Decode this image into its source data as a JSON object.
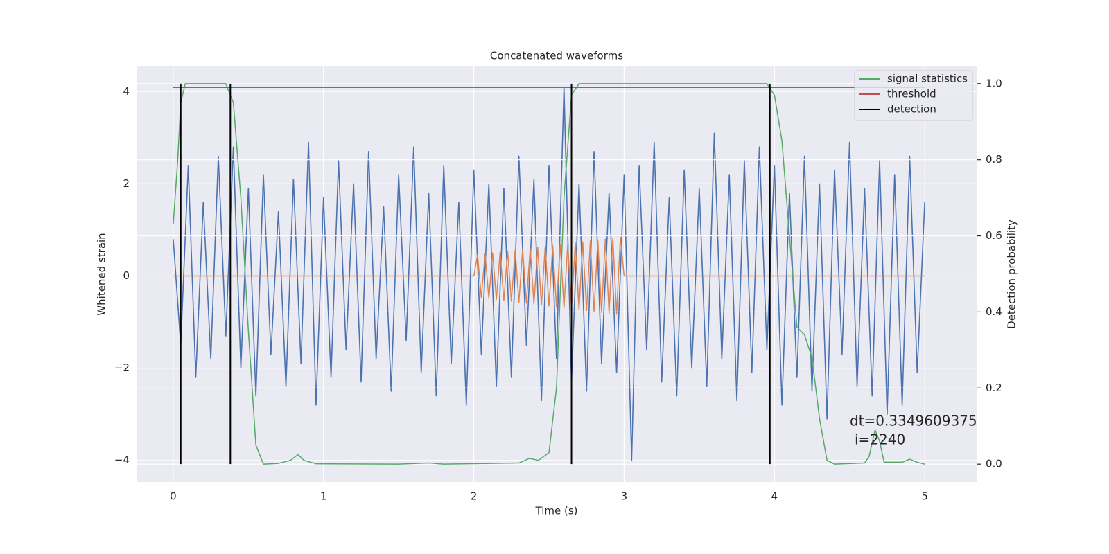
{
  "chart_data": {
    "type": "line",
    "title": "Concatenated waveforms",
    "x_label": "Time (s)",
    "y_label": "Whitened strain",
    "y2_label": "Detection probability",
    "annotation": [
      "dt=0.3349609375",
      "i=2240"
    ],
    "xlim": [
      -0.244,
      5.35
    ],
    "ylim": [
      -4.47,
      4.56
    ],
    "y2lim": [
      -0.047,
      1.047
    ],
    "xticks": [
      0,
      1,
      2,
      3,
      4,
      5
    ],
    "yticks": [
      {
        "value": -4,
        "label": "−4"
      },
      {
        "value": -2,
        "label": "−2"
      },
      0,
      2,
      4
    ],
    "y2ticks": [
      {
        "value": 0,
        "label": "0.0"
      },
      {
        "value": 0.2,
        "label": "0.2"
      },
      {
        "value": 0.4,
        "label": "0.4"
      },
      {
        "value": 0.6,
        "label": "0.6"
      },
      {
        "value": 0.8,
        "label": "0.8"
      },
      {
        "value": 1,
        "label": "1.0"
      }
    ],
    "grid": true,
    "legend": "upper right",
    "series": [
      {
        "color": "#4c72b0",
        "x": [
          0,
          0.05,
          0.1,
          0.15,
          0.2,
          0.25,
          0.3,
          0.35,
          0.4,
          0.45,
          0.5,
          0.55,
          0.6,
          0.65,
          0.7,
          0.75,
          0.8,
          0.85,
          0.9,
          0.95,
          1,
          1.05,
          1.1,
          1.15,
          1.2,
          1.25,
          1.3,
          1.35,
          1.4,
          1.45,
          1.5,
          1.55,
          1.6,
          1.65,
          1.7,
          1.75,
          1.8,
          1.85,
          1.9,
          1.95,
          2,
          2.05,
          2.1,
          2.15,
          2.2,
          2.25,
          2.3,
          2.35,
          2.4,
          2.45,
          2.5,
          2.55,
          2.6,
          2.65,
          2.7,
          2.75,
          2.8,
          2.85,
          2.9,
          2.95,
          3,
          3.05,
          3.1,
          3.15,
          3.2,
          3.25,
          3.3,
          3.35,
          3.4,
          3.45,
          3.5,
          3.55,
          3.6,
          3.65,
          3.7,
          3.75,
          3.8,
          3.85,
          3.9,
          3.95,
          4,
          4.05,
          4.1,
          4.15,
          4.2,
          4.25,
          4.3,
          4.35,
          4.4,
          4.45,
          4.5,
          4.55,
          4.6,
          4.65,
          4.7,
          4.75,
          4.8,
          4.85,
          4.9,
          4.95,
          5
        ],
        "values": [
          0.8,
          -1.5,
          2.4,
          -2.2,
          1.6,
          -1.8,
          2.6,
          -1.3,
          2.8,
          -2.0,
          1.9,
          -2.6,
          2.2,
          -1.7,
          1.4,
          -2.4,
          2.1,
          -1.9,
          2.9,
          -2.8,
          1.7,
          -2.2,
          2.5,
          -1.6,
          2.0,
          -2.3,
          2.7,
          -1.8,
          1.5,
          -2.5,
          2.2,
          -1.4,
          2.8,
          -2.1,
          1.8,
          -2.6,
          2.4,
          -1.9,
          1.6,
          -2.8,
          2.3,
          -1.7,
          2.0,
          -2.4,
          1.9,
          -2.2,
          2.6,
          -1.5,
          2.1,
          -2.7,
          2.4,
          -1.8,
          4.1,
          -2.3,
          2.0,
          -2.5,
          2.7,
          -1.9,
          1.8,
          -2.1,
          2.2,
          -4.0,
          2.4,
          -1.6,
          2.9,
          -2.3,
          1.7,
          -2.6,
          2.3,
          -2.0,
          1.9,
          -2.4,
          3.1,
          -1.8,
          2.2,
          -2.7,
          2.5,
          -2.1,
          2.8,
          -1.6,
          2.4,
          -2.8,
          1.8,
          -2.2,
          2.6,
          -2.5,
          2.0,
          -3.1,
          2.3,
          -1.7,
          2.9,
          -2.4,
          1.9,
          -2.6,
          2.5,
          -3.0,
          2.2,
          -2.8,
          2.6,
          -2.1,
          1.6
        ]
      },
      {
        "color": "#dd8452",
        "x": [
          0,
          2,
          2.025,
          2.05,
          2.075,
          2.1,
          2.125,
          2.15,
          2.175,
          2.2,
          2.225,
          2.25,
          2.275,
          2.3,
          2.325,
          2.35,
          2.375,
          2.4,
          2.425,
          2.45,
          2.475,
          2.5,
          2.525,
          2.55,
          2.575,
          2.6,
          2.625,
          2.65,
          2.675,
          2.7,
          2.725,
          2.75,
          2.775,
          2.8,
          2.825,
          2.85,
          2.875,
          2.9,
          2.925,
          2.95,
          2.975,
          3,
          5
        ],
        "values": [
          0,
          0,
          0.46,
          -0.47,
          0.48,
          -0.49,
          0.5,
          -0.51,
          0.52,
          -0.53,
          0.54,
          -0.55,
          0.56,
          -0.57,
          0.58,
          -0.59,
          0.6,
          -0.61,
          0.62,
          -0.63,
          0.64,
          -0.65,
          0.66,
          -0.67,
          0.68,
          -0.69,
          0.7,
          -0.71,
          0.72,
          -0.73,
          0.74,
          -0.75,
          0.76,
          -0.77,
          0.78,
          -0.79,
          0.8,
          -0.81,
          0.82,
          -0.83,
          0.84,
          0,
          0
        ]
      },
      {
        "name": "signal statistics",
        "color": "#55a868",
        "axis": "y2",
        "x": [
          0,
          0.03,
          0.05,
          0.08,
          0.35,
          0.4,
          0.45,
          0.5,
          0.55,
          0.6,
          0.7,
          0.78,
          0.83,
          0.87,
          0.95,
          1.5,
          1.7,
          1.8,
          2.3,
          2.37,
          2.43,
          2.5,
          2.55,
          2.6,
          2.65,
          2.7,
          3.95,
          4,
          4.05,
          4.1,
          4.15,
          4.2,
          4.25,
          4.3,
          4.35,
          4.4,
          4.6,
          4.63,
          4.67,
          4.7,
          4.73,
          4.85,
          4.9,
          4.95,
          5
        ],
        "values": [
          0.63,
          0.8,
          0.95,
          1.0,
          1.0,
          0.95,
          0.7,
          0.35,
          0.05,
          0.0,
          0.002,
          0.01,
          0.025,
          0.01,
          0.001,
          0.0,
          0.003,
          0.0,
          0.003,
          0.015,
          0.01,
          0.03,
          0.2,
          0.7,
          0.97,
          1.0,
          1.0,
          0.97,
          0.85,
          0.6,
          0.36,
          0.34,
          0.28,
          0.12,
          0.01,
          0.0,
          0.003,
          0.02,
          0.09,
          0.06,
          0.005,
          0.005,
          0.013,
          0.005,
          0.0
        ]
      },
      {
        "name": "threshold",
        "color": "#c44e52",
        "axis": "y2",
        "x": [
          0,
          5
        ],
        "values": [
          0.99,
          0.99
        ]
      },
      {
        "name": "detection",
        "color": "#000000",
        "axis": "y2",
        "style": "vlines",
        "x": [
          0.05,
          0.38,
          2.65,
          3.97
        ],
        "values": [
          1,
          1,
          1,
          1
        ]
      }
    ]
  }
}
